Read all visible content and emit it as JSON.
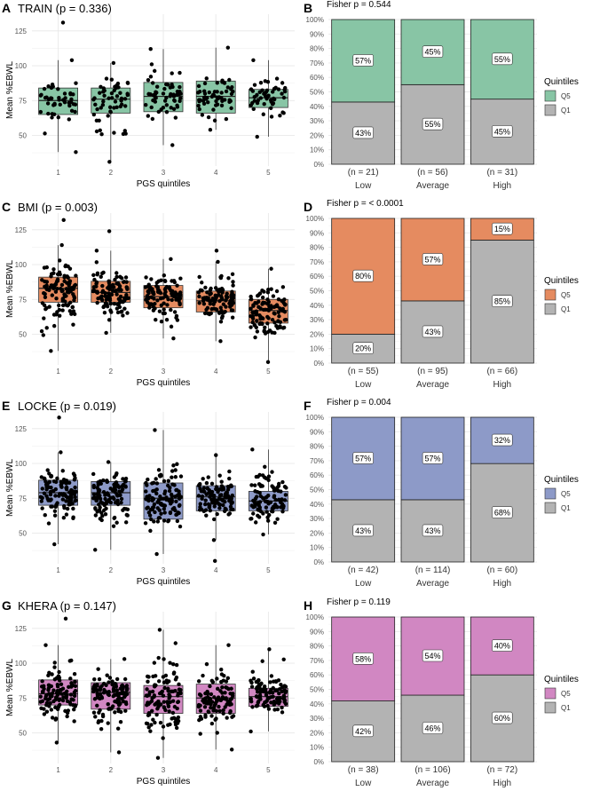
{
  "colors": {
    "q1": "#b3b3b3",
    "grid": "#e8e8e8",
    "panels": [
      "#88c5a5",
      "#e58b60",
      "#8d9ac8",
      "#d187c2"
    ]
  },
  "legend": {
    "title": "Quintiles",
    "items": [
      "Q5",
      "Q1"
    ]
  },
  "chart_data": [
    {
      "panel": "A",
      "type": "box",
      "title": "TRAIN (p = 0.336)",
      "xlabel": "PGS quintiles",
      "ylabel": "Mean %EBWL",
      "categories": [
        "1",
        "2",
        "3",
        "4",
        "5"
      ],
      "yticks": [
        50,
        75,
        100,
        125
      ],
      "ylim": [
        28,
        137
      ],
      "boxes": [
        {
          "q1": 65,
          "median": 75,
          "q3": 84,
          "lo": 38,
          "hi": 104,
          "n": 48,
          "out": [
            131
          ]
        },
        {
          "q1": 66,
          "median": 76,
          "q3": 84,
          "lo": 31,
          "hi": 102,
          "n": 56,
          "out": []
        },
        {
          "q1": 67,
          "median": 78,
          "q3": 88,
          "lo": 43,
          "hi": 112,
          "n": 58,
          "out": []
        },
        {
          "q1": 66,
          "median": 78,
          "q3": 89,
          "lo": 54,
          "hi": 113,
          "n": 58,
          "out": []
        },
        {
          "q1": 70,
          "median": 77,
          "q3": 83,
          "lo": 49,
          "hi": 104,
          "n": 52,
          "out": []
        }
      ]
    },
    {
      "panel": "B",
      "type": "stacked-bar",
      "title": "Fisher p = 0.544",
      "categories": [
        "Low",
        "Average",
        "High"
      ],
      "n_labels": [
        "(n = 21)",
        "(n = 56)",
        "(n = 31)"
      ],
      "series": [
        {
          "name": "Q1",
          "values": [
            43,
            55,
            45
          ],
          "labels": [
            "43%",
            "55%",
            "45%"
          ]
        },
        {
          "name": "Q5",
          "values": [
            57,
            45,
            55
          ],
          "labels": [
            "57%",
            "45%",
            "55%"
          ]
        }
      ],
      "yticks": [
        "0%",
        "10%",
        "20%",
        "30%",
        "40%",
        "50%",
        "60%",
        "70%",
        "80%",
        "90%",
        "100%"
      ]
    },
    {
      "panel": "C",
      "type": "box",
      "title": "BMI (p = 0.003)",
      "xlabel": "PGS quintiles",
      "ylabel": "Mean %EBWL",
      "categories": [
        "1",
        "2",
        "3",
        "4",
        "5"
      ],
      "yticks": [
        50,
        75,
        100,
        125
      ],
      "ylim": [
        28,
        137
      ],
      "boxes": [
        {
          "q1": 73,
          "median": 83,
          "q3": 91,
          "lo": 38,
          "hi": 114,
          "n": 110,
          "out": [
            132
          ]
        },
        {
          "q1": 73,
          "median": 80,
          "q3": 88,
          "lo": 51,
          "hi": 110,
          "n": 110,
          "out": [
            124
          ]
        },
        {
          "q1": 69,
          "median": 77,
          "q3": 85,
          "lo": 47,
          "hi": 104,
          "n": 105,
          "out": []
        },
        {
          "q1": 66,
          "median": 74,
          "q3": 81,
          "lo": 45,
          "hi": 102,
          "n": 105,
          "out": [
            110
          ]
        },
        {
          "q1": 58,
          "median": 67,
          "q3": 75,
          "lo": 30,
          "hi": 97,
          "n": 105,
          "out": []
        }
      ]
    },
    {
      "panel": "D",
      "type": "stacked-bar",
      "title": "Fisher p = < 0.0001",
      "categories": [
        "Low",
        "Average",
        "High"
      ],
      "n_labels": [
        "(n = 55)",
        "(n = 95)",
        "(n = 66)"
      ],
      "series": [
        {
          "name": "Q1",
          "values": [
            20,
            43,
            85
          ],
          "labels": [
            "20%",
            "43%",
            "85%"
          ]
        },
        {
          "name": "Q5",
          "values": [
            80,
            57,
            15
          ],
          "labels": [
            "80%",
            "57%",
            "15%"
          ]
        }
      ],
      "yticks": [
        "0%",
        "10%",
        "20%",
        "30%",
        "40%",
        "50%",
        "60%",
        "70%",
        "80%",
        "90%",
        "100%"
      ]
    },
    {
      "panel": "E",
      "type": "box",
      "title": "LOCKE (p = 0.019)",
      "xlabel": "PGS quintiles",
      "ylabel": "Mean %EBWL",
      "categories": [
        "1",
        "2",
        "3",
        "4",
        "5"
      ],
      "yticks": [
        50,
        75,
        100,
        125
      ],
      "ylim": [
        28,
        137
      ],
      "boxes": [
        {
          "q1": 70,
          "median": 79,
          "q3": 88,
          "lo": 42,
          "hi": 108,
          "n": 110,
          "out": [
            133
          ]
        },
        {
          "q1": 70,
          "median": 79,
          "q3": 87,
          "lo": 38,
          "hi": 101,
          "n": 110,
          "out": []
        },
        {
          "q1": 60,
          "median": 75,
          "q3": 86,
          "lo": 35,
          "hi": 124,
          "n": 115,
          "out": []
        },
        {
          "q1": 66,
          "median": 76,
          "q3": 84,
          "lo": 45,
          "hi": 106,
          "n": 110,
          "out": [
            30
          ]
        },
        {
          "q1": 66,
          "median": 73,
          "q3": 80,
          "lo": 49,
          "hi": 110,
          "n": 105,
          "out": []
        }
      ]
    },
    {
      "panel": "F",
      "type": "stacked-bar",
      "title": "Fisher p = 0.004",
      "categories": [
        "Low",
        "Average",
        "High"
      ],
      "n_labels": [
        "(n = 42)",
        "(n = 114)",
        "(n = 60)"
      ],
      "series": [
        {
          "name": "Q1",
          "values": [
            43,
            43,
            68
          ],
          "labels": [
            "43%",
            "43%",
            "68%"
          ]
        },
        {
          "name": "Q5",
          "values": [
            57,
            57,
            32
          ],
          "labels": [
            "57%",
            "57%",
            "32%"
          ]
        }
      ],
      "yticks": [
        "0%",
        "10%",
        "20%",
        "30%",
        "40%",
        "50%",
        "60%",
        "70%",
        "80%",
        "90%",
        "100%"
      ]
    },
    {
      "panel": "G",
      "type": "box",
      "title": "KHERA (p = 0.147)",
      "xlabel": "PGS quintiles",
      "ylabel": "Mean %EBWL",
      "categories": [
        "1",
        "2",
        "3",
        "4",
        "5"
      ],
      "yticks": [
        50,
        75,
        100,
        125
      ],
      "ylim": [
        28,
        137
      ],
      "boxes": [
        {
          "q1": 70,
          "median": 78,
          "q3": 88,
          "lo": 43,
          "hi": 113,
          "n": 110,
          "out": [
            132
          ]
        },
        {
          "q1": 67,
          "median": 79,
          "q3": 86,
          "lo": 36,
          "hi": 103,
          "n": 110,
          "out": []
        },
        {
          "q1": 64,
          "median": 76,
          "q3": 84,
          "lo": 32,
          "hi": 124,
          "n": 115,
          "out": []
        },
        {
          "q1": 64,
          "median": 75,
          "q3": 85,
          "lo": 38,
          "hi": 113,
          "n": 110,
          "out": []
        },
        {
          "q1": 69,
          "median": 76,
          "q3": 82,
          "lo": 51,
          "hi": 110,
          "n": 105,
          "out": []
        }
      ]
    },
    {
      "panel": "H",
      "type": "stacked-bar",
      "title": "Fisher p = 0.119",
      "categories": [
        "Low",
        "Average",
        "High"
      ],
      "n_labels": [
        "(n = 38)",
        "(n = 106)",
        "(n = 72)"
      ],
      "series": [
        {
          "name": "Q1",
          "values": [
            42,
            46,
            60
          ],
          "labels": [
            "42%",
            "46%",
            "60%"
          ]
        },
        {
          "name": "Q5",
          "values": [
            58,
            54,
            40
          ],
          "labels": [
            "58%",
            "54%",
            "40%"
          ]
        }
      ],
      "yticks": [
        "0%",
        "10%",
        "20%",
        "30%",
        "40%",
        "50%",
        "60%",
        "70%",
        "80%",
        "90%",
        "100%"
      ]
    }
  ]
}
